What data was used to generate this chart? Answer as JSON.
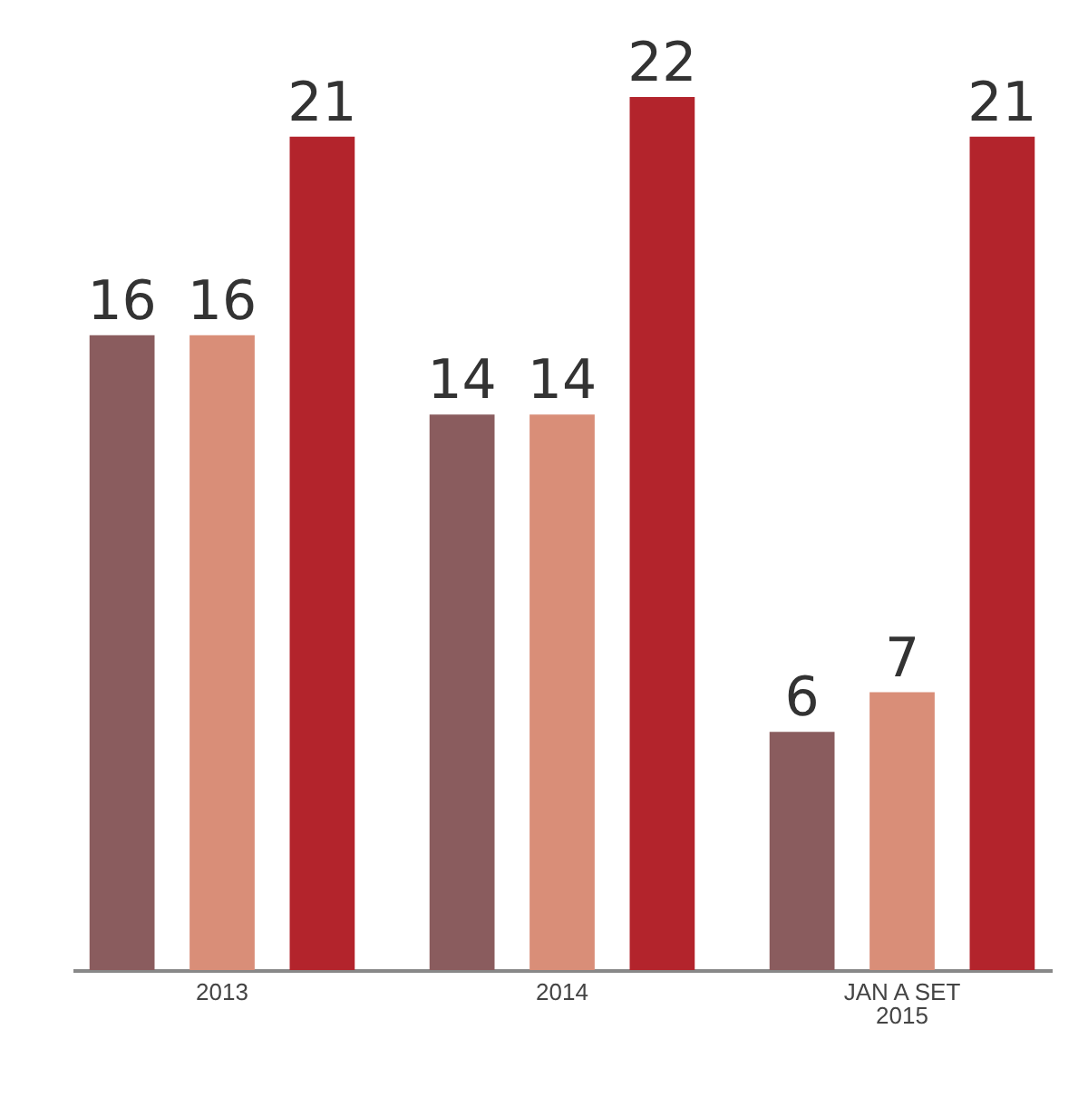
{
  "chart_data": {
    "type": "bar",
    "categories": [
      "2013",
      "2014",
      "JAN A SET\n2015"
    ],
    "series": [
      {
        "color": "#8a5c5e",
        "values": [
          16,
          14,
          6
        ]
      },
      {
        "color": "#d98e78",
        "values": [
          16,
          14,
          7
        ]
      },
      {
        "color": "#b3242c",
        "values": [
          21,
          22,
          21
        ]
      }
    ],
    "data_labels": true,
    "legend": false
  }
}
